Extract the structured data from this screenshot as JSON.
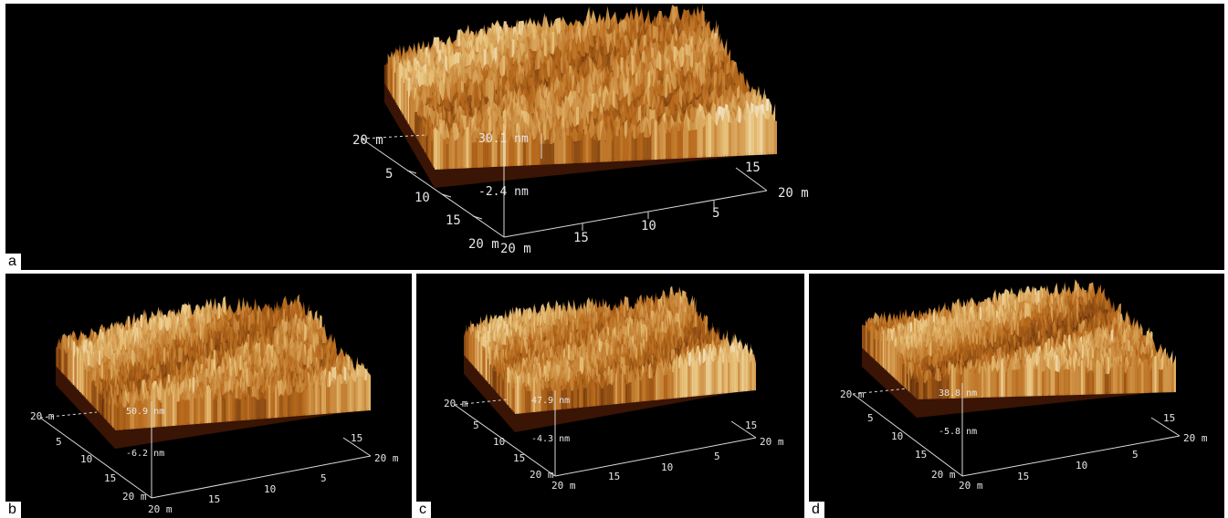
{
  "panels": [
    {
      "id": "a",
      "label": "a",
      "z_top": "30.1 nm",
      "z_bottom": "-2.4 nm",
      "left_axis": [
        "20 m",
        "5",
        "10",
        "15",
        "20 m"
      ],
      "bottom_axis": [
        "20 m",
        "15",
        "10",
        "5",
        "20 m"
      ],
      "right_tick": "15"
    },
    {
      "id": "b",
      "label": "b",
      "z_top": "50.9 nm",
      "z_bottom": "-6.2 nm",
      "left_axis": [
        "20 m",
        "5",
        "10",
        "15",
        "20 m"
      ],
      "bottom_axis": [
        "20 m",
        "15",
        "10",
        "5",
        "20 m"
      ],
      "right_tick": "15"
    },
    {
      "id": "c",
      "label": "c",
      "z_top": "47.9 nm",
      "z_bottom": "-4.3 nm",
      "left_axis": [
        "20 m",
        "5",
        "10",
        "15",
        "20 m"
      ],
      "bottom_axis": [
        "20 m",
        "15",
        "10",
        "5",
        "20 m"
      ],
      "right_tick": "15"
    },
    {
      "id": "d",
      "label": "d",
      "z_top": "38.8 nm",
      "z_bottom": "-5.8 nm",
      "left_axis": [
        "20 m",
        "5",
        "10",
        "15",
        "20 m"
      ],
      "bottom_axis": [
        "20 m",
        "15",
        "10",
        "5",
        "20 m"
      ],
      "right_tick": "15"
    }
  ],
  "colors": {
    "background": "#000000",
    "surface_dark": "#3a1404",
    "surface_mid": "#b86a1c",
    "surface_light": "#e8c27a",
    "surface_peak": "#f4eee0",
    "axis": "#d9d9d9",
    "separator": "#ffffff"
  }
}
